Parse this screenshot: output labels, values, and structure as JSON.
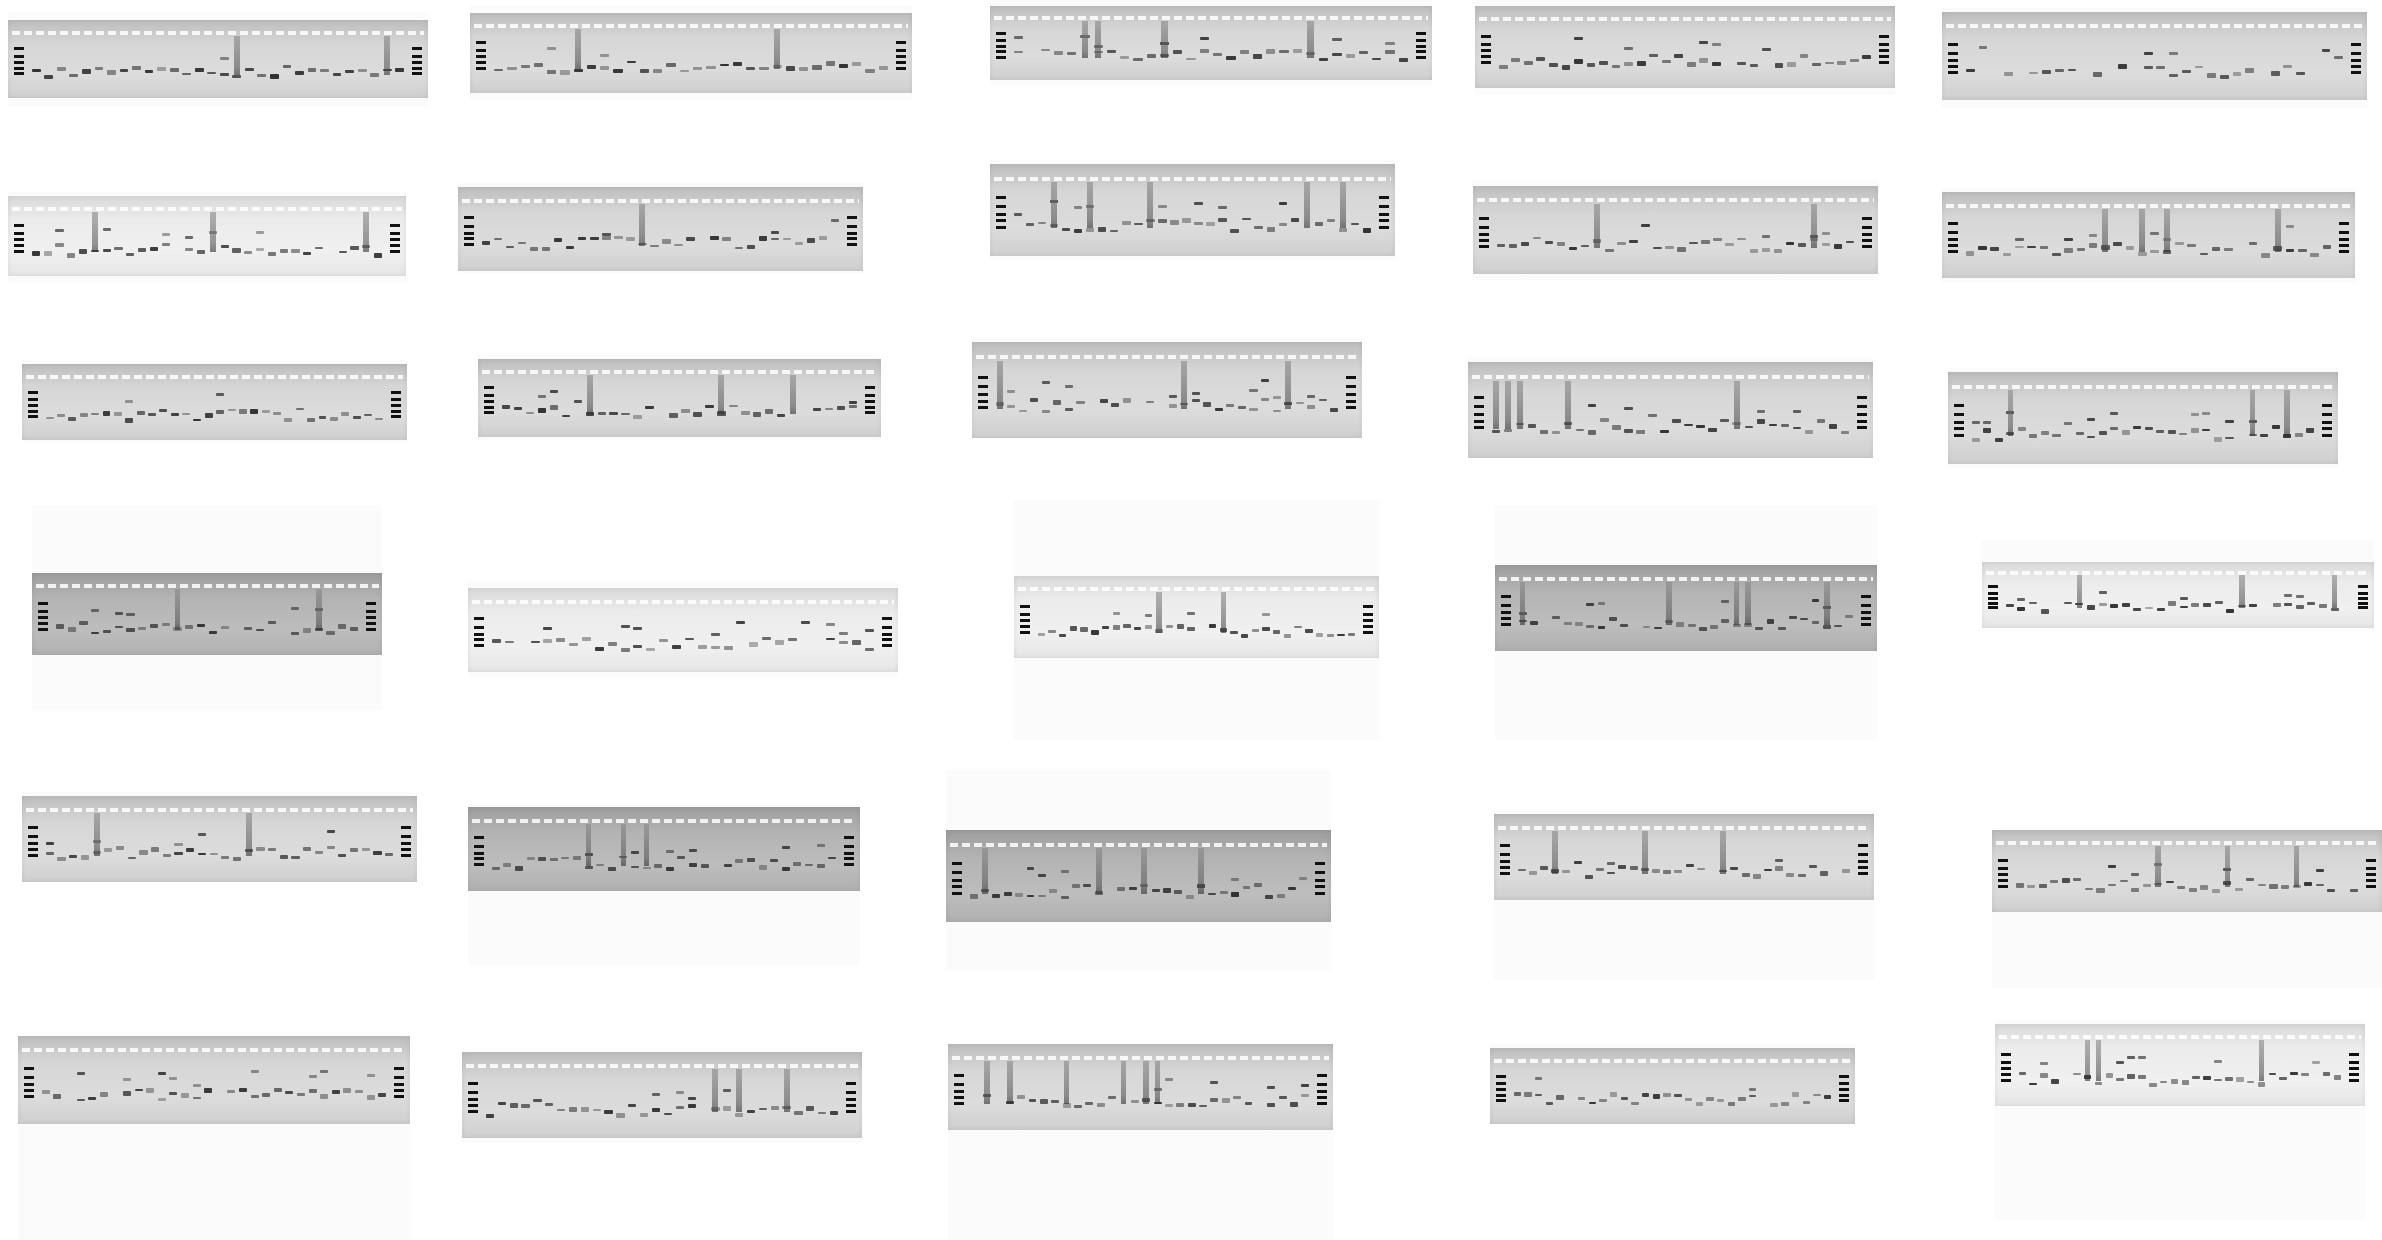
{
  "collage": {
    "description_type": "grid of agarose gel electrophoresis photographs",
    "rows": 6,
    "columns": 5,
    "colors": {
      "background": "#ffffff",
      "band": "#2a2a2a",
      "ladder": "#111111"
    },
    "gels": [
      {
        "id": "r1c1",
        "lanes": 30,
        "tone": "normal"
      },
      {
        "id": "r1c2",
        "lanes": 30,
        "tone": "normal"
      },
      {
        "id": "r1c3",
        "lanes": 30,
        "tone": "normal"
      },
      {
        "id": "r1c4",
        "lanes": 30,
        "tone": "normal"
      },
      {
        "id": "r1c5",
        "lanes": 30,
        "tone": "normal"
      },
      {
        "id": "r2c1",
        "lanes": 30,
        "tone": "light"
      },
      {
        "id": "r2c2",
        "lanes": 30,
        "tone": "normal"
      },
      {
        "id": "r2c3",
        "lanes": 30,
        "tone": "normal"
      },
      {
        "id": "r2c4",
        "lanes": 30,
        "tone": "normal"
      },
      {
        "id": "r2c5",
        "lanes": 30,
        "tone": "normal"
      },
      {
        "id": "r3c1",
        "lanes": 30,
        "tone": "normal"
      },
      {
        "id": "r3c2",
        "lanes": 30,
        "tone": "normal"
      },
      {
        "id": "r3c3",
        "lanes": 30,
        "tone": "normal"
      },
      {
        "id": "r3c4",
        "lanes": 30,
        "tone": "normal"
      },
      {
        "id": "r3c5",
        "lanes": 30,
        "tone": "normal"
      },
      {
        "id": "r4c1",
        "lanes": 26,
        "tone": "dark"
      },
      {
        "id": "r4c2",
        "lanes": 30,
        "tone": "light"
      },
      {
        "id": "r4c3",
        "lanes": 30,
        "tone": "light"
      },
      {
        "id": "r4c4",
        "lanes": 30,
        "tone": "dark"
      },
      {
        "id": "r4c5",
        "lanes": 30,
        "tone": "light"
      },
      {
        "id": "r5c1",
        "lanes": 30,
        "tone": "normal"
      },
      {
        "id": "r5c2",
        "lanes": 30,
        "tone": "dark"
      },
      {
        "id": "r5c3",
        "lanes": 30,
        "tone": "dark"
      },
      {
        "id": "r5c4",
        "lanes": 30,
        "tone": "normal"
      },
      {
        "id": "r5c5",
        "lanes": 30,
        "tone": "normal"
      },
      {
        "id": "r6c1",
        "lanes": 30,
        "tone": "normal"
      },
      {
        "id": "r6c2",
        "lanes": 30,
        "tone": "normal"
      },
      {
        "id": "r6c3",
        "lanes": 30,
        "tone": "normal"
      },
      {
        "id": "r6c4",
        "lanes": 30,
        "tone": "normal"
      },
      {
        "id": "r6c5",
        "lanes": 30,
        "tone": "light"
      }
    ]
  }
}
